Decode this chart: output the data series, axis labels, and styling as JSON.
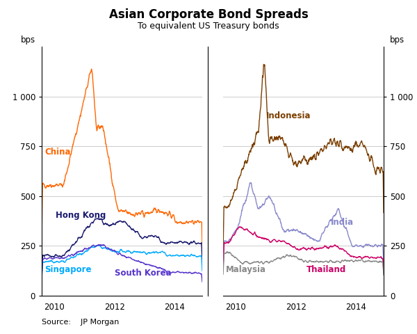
{
  "title": "Asian Corporate Bond Spreads",
  "subtitle": "To equivalent US Treasury bonds",
  "source": "Source:    JP Morgan",
  "ylabel_left": "bps",
  "ylabel_right": "bps",
  "ylim": [
    0,
    1250
  ],
  "yticks": [
    0,
    250,
    500,
    750,
    1000
  ],
  "ytick_labels": [
    "0",
    "250",
    "500",
    "750",
    "1 000"
  ],
  "colors": {
    "China": "#FF6600",
    "HongKong": "#1a1a6e",
    "Singapore": "#00aaff",
    "SouthKorea": "#5533cc",
    "Indonesia": "#7B3F00",
    "India": "#8888cc",
    "Thailand": "#cc0066",
    "Malaysia": "#888888"
  },
  "background_color": "#ffffff",
  "grid_color": "#cccccc",
  "left_xlim": [
    2009.58,
    2014.92
  ],
  "right_xlim": [
    2009.58,
    2014.92
  ],
  "left_xticks": [
    2010,
    2012,
    2014
  ],
  "right_xticks": [
    2010,
    2012,
    2014
  ],
  "fig_width": 6.0,
  "fig_height": 4.8,
  "dpi": 100
}
